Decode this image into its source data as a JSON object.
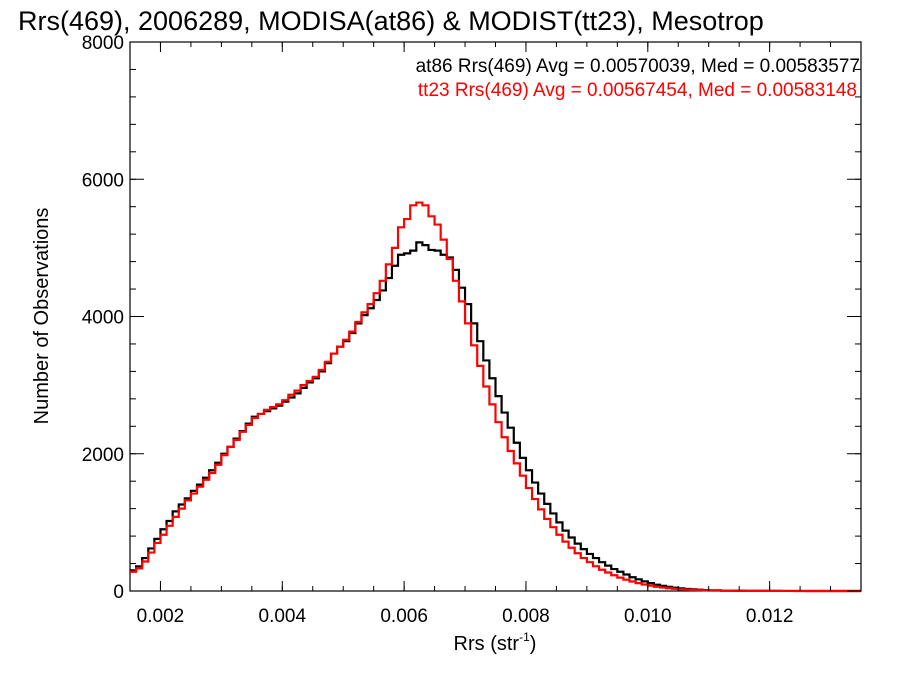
{
  "chart_data": {
    "type": "line",
    "title": "Rrs(469), 2006289, MODISA(at86) & MODIST(tt23), Mesotrop",
    "xlabel": "Rrs (str",
    "xlabel_sup": "-1",
    "xlabel_close": ")",
    "ylabel": "Number of Observations",
    "xlim": [
      0.0015,
      0.0135
    ],
    "ylim": [
      0,
      8000
    ],
    "xticks": [
      0.002,
      0.004,
      0.006,
      0.008,
      0.01,
      0.012
    ],
    "xtick_labels": [
      "0.002",
      "0.004",
      "0.006",
      "0.008",
      "0.010",
      "0.012"
    ],
    "yticks": [
      0,
      2000,
      4000,
      6000,
      8000
    ],
    "ytick_labels": [
      "0",
      "2000",
      "4000",
      "6000",
      "8000"
    ],
    "grid": false,
    "legend_position": "top-right",
    "annotations": [
      {
        "text": "at86 Rrs(469) Avg = 0.00570039, Med = 0.00583577",
        "color": "#000000"
      },
      {
        "text": "tt23 Rrs(469) Avg = 0.00567454, Med = 0.00583148",
        "color": "#ff0000"
      }
    ],
    "x": [
      0.0015,
      0.0016,
      0.0017,
      0.0018,
      0.0019,
      0.002,
      0.0021,
      0.0022,
      0.0023,
      0.0024,
      0.0025,
      0.0026,
      0.0027,
      0.0028,
      0.0029,
      0.003,
      0.0031,
      0.0032,
      0.0033,
      0.0034,
      0.0035,
      0.0036,
      0.0037,
      0.0038,
      0.0039,
      0.004,
      0.0041,
      0.0042,
      0.0043,
      0.0044,
      0.0045,
      0.0046,
      0.0047,
      0.0048,
      0.0049,
      0.005,
      0.0051,
      0.0052,
      0.0053,
      0.0054,
      0.0055,
      0.0056,
      0.0057,
      0.0058,
      0.0059,
      0.006,
      0.0061,
      0.0062,
      0.0063,
      0.0064,
      0.0065,
      0.0066,
      0.0067,
      0.0068,
      0.0069,
      0.007,
      0.0071,
      0.0072,
      0.0073,
      0.0074,
      0.0075,
      0.0076,
      0.0077,
      0.0078,
      0.0079,
      0.008,
      0.0081,
      0.0082,
      0.0083,
      0.0084,
      0.0085,
      0.0086,
      0.0087,
      0.0088,
      0.0089,
      0.009,
      0.0091,
      0.0092,
      0.0093,
      0.0094,
      0.0095,
      0.0096,
      0.0097,
      0.0098,
      0.0099,
      0.01,
      0.0101,
      0.0102,
      0.0103,
      0.0104,
      0.0105,
      0.0106,
      0.0107,
      0.0108,
      0.0109,
      0.011,
      0.0112,
      0.0114,
      0.0116,
      0.0118,
      0.012,
      0.0122,
      0.0124,
      0.0126,
      0.0128,
      0.013,
      0.0132,
      0.0134,
      0.0135
    ],
    "series": [
      {
        "name": "at86",
        "color": "#000000",
        "values": [
          300,
          360,
          480,
          620,
          760,
          900,
          1020,
          1160,
          1260,
          1350,
          1460,
          1550,
          1650,
          1760,
          1870,
          2000,
          2100,
          2220,
          2330,
          2440,
          2540,
          2580,
          2620,
          2660,
          2700,
          2760,
          2820,
          2880,
          2960,
          3040,
          3100,
          3200,
          3320,
          3460,
          3560,
          3640,
          3760,
          3900,
          4020,
          4120,
          4240,
          4380,
          4560,
          4740,
          4900,
          4920,
          4960,
          5080,
          5040,
          4970,
          4960,
          4900,
          4860,
          4680,
          4420,
          4180,
          3900,
          3640,
          3360,
          3100,
          2840,
          2600,
          2380,
          2160,
          1940,
          1760,
          1580,
          1420,
          1270,
          1130,
          1000,
          880,
          780,
          690,
          610,
          540,
          480,
          420,
          370,
          320,
          280,
          240,
          200,
          170,
          140,
          115,
          92,
          75,
          60,
          48,
          38,
          30,
          24,
          18,
          14,
          10,
          6,
          4,
          3,
          2,
          2,
          1,
          1,
          0,
          0,
          0,
          0,
          0,
          0
        ]
      },
      {
        "name": "tt23",
        "color": "#ff0000",
        "values": [
          280,
          330,
          430,
          560,
          700,
          820,
          950,
          1080,
          1200,
          1320,
          1420,
          1520,
          1620,
          1720,
          1840,
          1980,
          2100,
          2200,
          2320,
          2420,
          2520,
          2580,
          2640,
          2680,
          2720,
          2780,
          2860,
          2920,
          3000,
          3060,
          3120,
          3220,
          3340,
          3460,
          3560,
          3660,
          3780,
          3920,
          4060,
          4180,
          4340,
          4520,
          4760,
          5000,
          5300,
          5420,
          5620,
          5660,
          5620,
          5460,
          5340,
          5120,
          4840,
          4520,
          4220,
          3900,
          3580,
          3280,
          2980,
          2720,
          2460,
          2240,
          2040,
          1860,
          1680,
          1500,
          1340,
          1190,
          1050,
          930,
          820,
          720,
          630,
          550,
          480,
          420,
          360,
          310,
          270,
          230,
          195,
          165,
          138,
          115,
          95,
          78,
          62,
          50,
          40,
          32,
          25,
          20,
          15,
          12,
          9,
          7,
          5,
          3,
          2,
          2,
          1,
          1,
          0,
          0,
          0,
          0,
          0,
          0,
          0
        ]
      }
    ]
  }
}
